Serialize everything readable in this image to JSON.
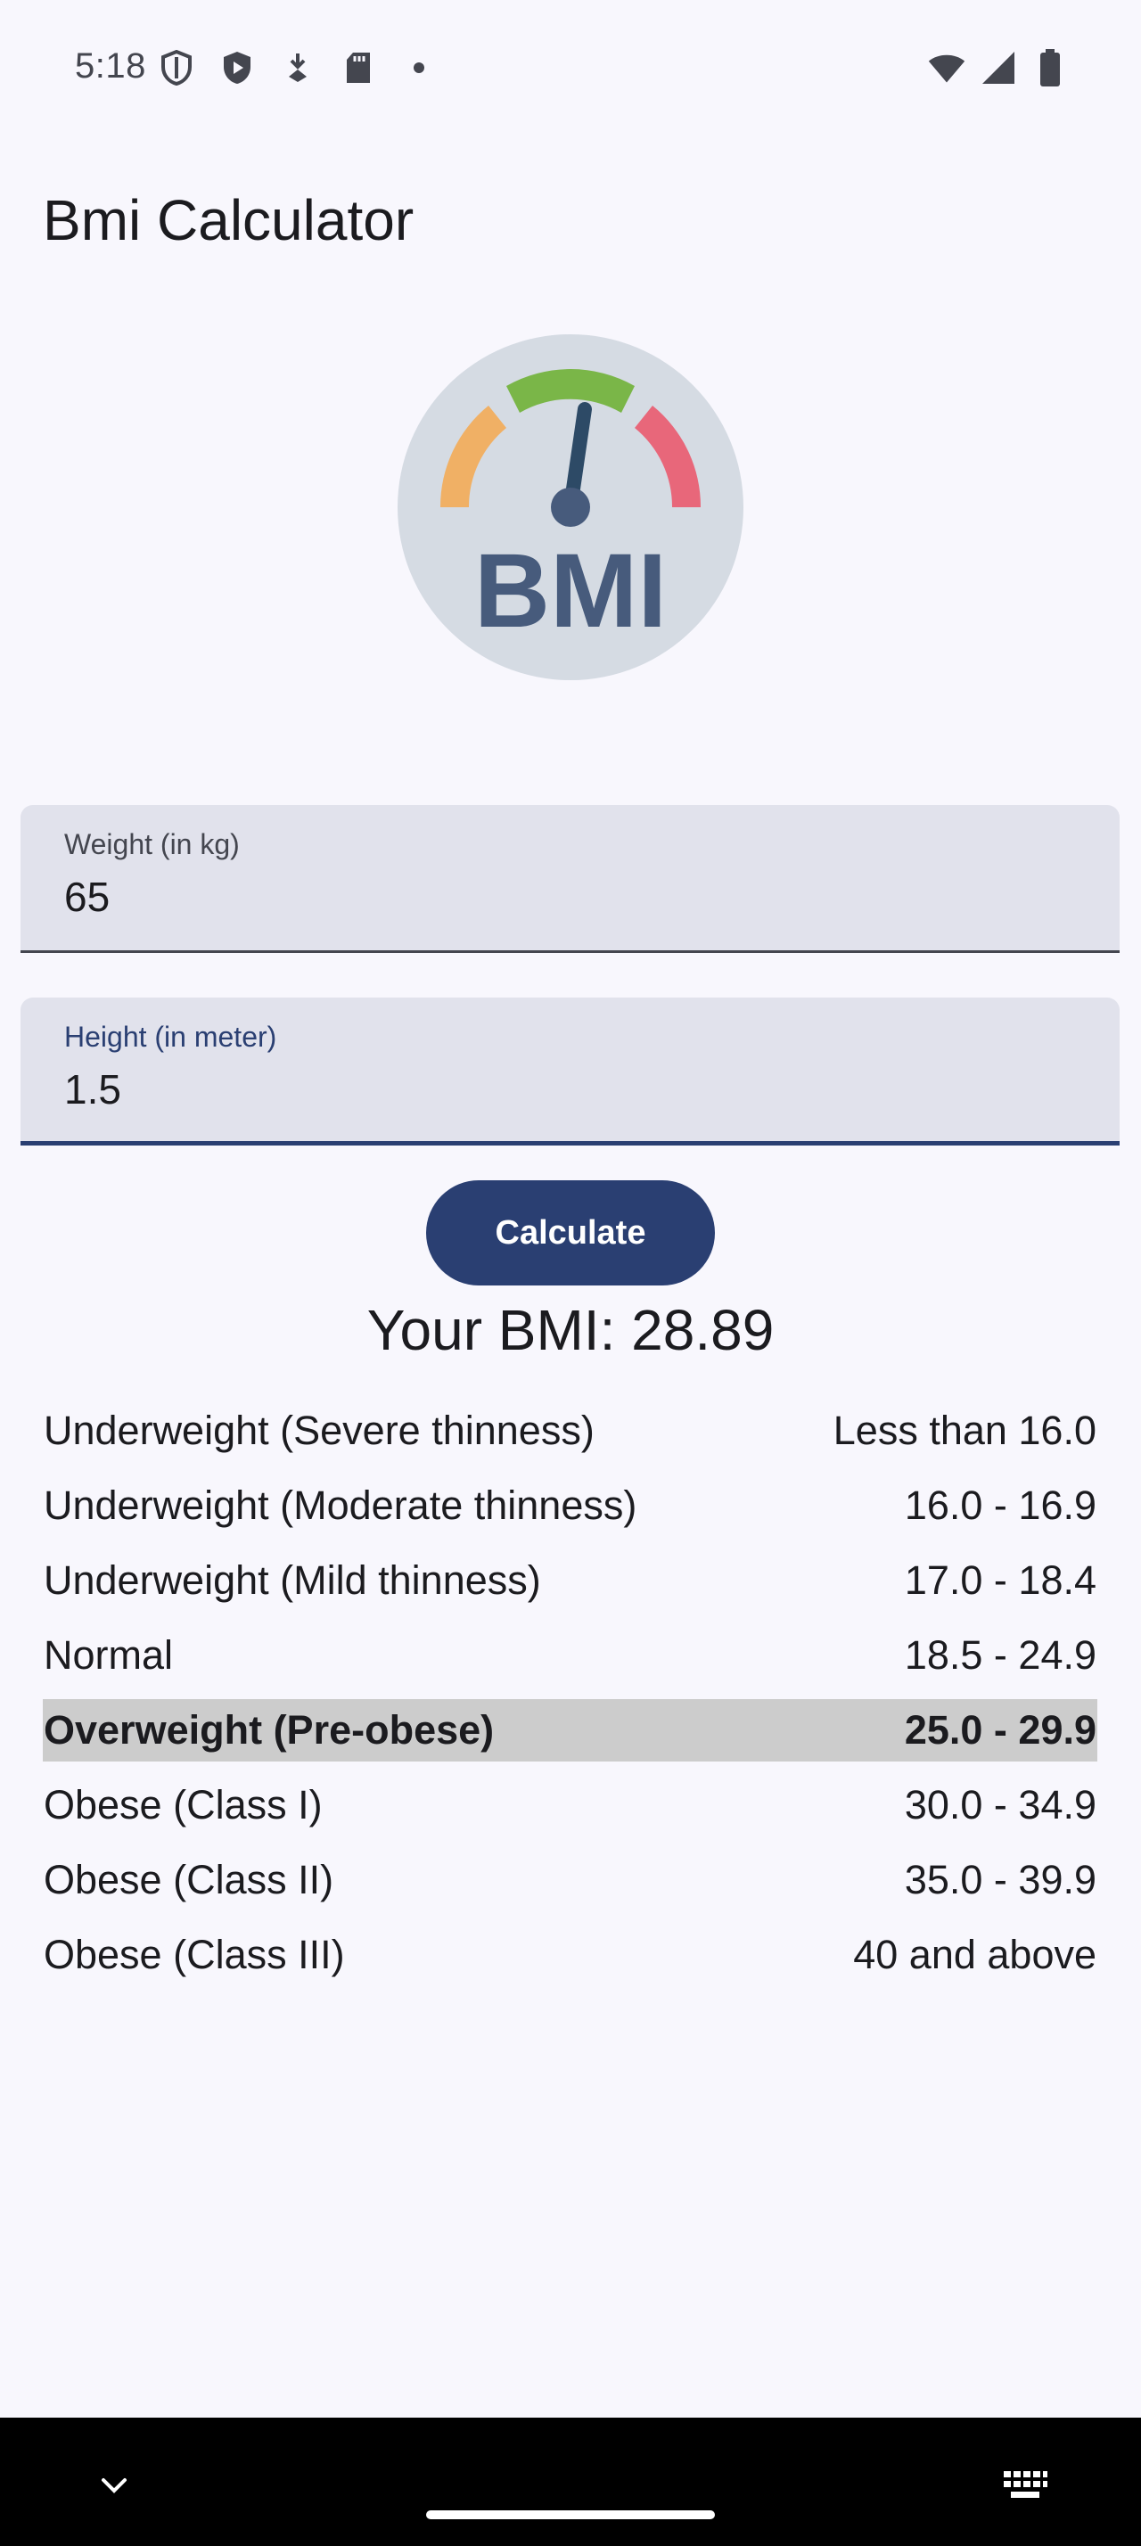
{
  "status_bar": {
    "time": "5:18",
    "left_icons": [
      "shield-outline-icon",
      "play-shield-icon",
      "download-icon",
      "sd-card-icon",
      "dot-icon"
    ],
    "right_icons": [
      "wifi-icon",
      "cellular-signal-icon",
      "battery-icon"
    ]
  },
  "app_bar": {
    "title": "Bmi Calculator"
  },
  "logo": {
    "text": "BMI",
    "icon": "bmi-gauge-icon"
  },
  "form": {
    "weight": {
      "label": "Weight (in kg)",
      "value": "65"
    },
    "height": {
      "label": "Height (in meter)",
      "value": "1.5"
    },
    "calculate_label": "Calculate"
  },
  "result": {
    "text": "Your BMI: 28.89"
  },
  "categories": [
    {
      "name": "Underweight (Severe thinness)",
      "range": "Less than 16.0"
    },
    {
      "name": "Underweight (Moderate thinness)",
      "range": "16.0 - 16.9"
    },
    {
      "name": "Underweight (Mild thinness)",
      "range": "17.0 - 18.4"
    },
    {
      "name": "Normal",
      "range": "18.5 - 24.9"
    },
    {
      "name": "Overweight (Pre-obese)",
      "range": "25.0 - 29.9"
    },
    {
      "name": "Obese (Class I)",
      "range": "30.0 - 34.9"
    },
    {
      "name": "Obese (Class II)",
      "range": "35.0 - 39.9"
    },
    {
      "name": "Obese (Class III)",
      "range": "40 and above"
    }
  ],
  "highlighted_category": "Overweight (Pre-obese)",
  "colors": {
    "background": "#f8f7fd",
    "primary": "#2a3f72",
    "field_background": "#e1e2ec",
    "highlight": "#cccccc",
    "gauge_orange": "#f0b065",
    "gauge_green": "#7ab648",
    "gauge_red": "#e8677a",
    "gauge_circle": "#d5dbe3",
    "gauge_text": "#475b7c"
  },
  "nav_bar": {
    "icons": [
      "chevron-down-icon",
      "home-handle",
      "keyboard-icon"
    ]
  }
}
